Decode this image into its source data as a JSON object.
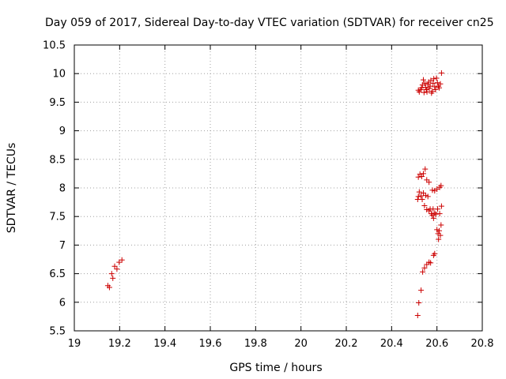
{
  "chart_data": {
    "type": "scatter",
    "title": "Day 059 of 2017, Sidereal Day-to-day VTEC variation (SDTVAR) for receiver cn25",
    "xlabel": "GPS time / hours",
    "ylabel": "SDTVAR / TECUs",
    "xlim": [
      19,
      20.8
    ],
    "ylim": [
      5.5,
      10.5
    ],
    "xticks": [
      "19",
      "19.2",
      "19.4",
      "19.6",
      "19.8",
      "20",
      "20.2",
      "20.4",
      "20.6",
      "20.8"
    ],
    "yticks": [
      "5.5",
      "6",
      "6.5",
      "7",
      "7.5",
      "8",
      "8.5",
      "9",
      "9.5",
      "10",
      "10.5"
    ],
    "grid": true,
    "marker": "+",
    "color": "#cc0000",
    "series": [
      {
        "name": "SDTVAR",
        "points": [
          [
            19.148,
            6.29
          ],
          [
            19.155,
            6.26
          ],
          [
            19.165,
            6.5
          ],
          [
            19.17,
            6.42
          ],
          [
            19.178,
            6.63
          ],
          [
            19.188,
            6.58
          ],
          [
            19.198,
            6.7
          ],
          [
            19.21,
            6.74
          ],
          [
            20.515,
            5.77
          ],
          [
            20.52,
            5.99
          ],
          [
            20.53,
            6.21
          ],
          [
            20.537,
            6.53
          ],
          [
            20.545,
            6.6
          ],
          [
            20.555,
            6.66
          ],
          [
            20.565,
            6.7
          ],
          [
            20.572,
            6.69
          ],
          [
            20.585,
            6.82
          ],
          [
            20.59,
            6.85
          ],
          [
            20.515,
            7.8
          ],
          [
            20.518,
            7.85
          ],
          [
            20.522,
            7.93
          ],
          [
            20.53,
            7.86
          ],
          [
            20.535,
            7.8
          ],
          [
            20.54,
            7.91
          ],
          [
            20.545,
            7.69
          ],
          [
            20.55,
            7.87
          ],
          [
            20.555,
            7.62
          ],
          [
            20.56,
            7.85
          ],
          [
            20.565,
            7.6
          ],
          [
            20.57,
            7.63
          ],
          [
            20.575,
            7.55
          ],
          [
            20.58,
            7.52
          ],
          [
            20.583,
            7.63
          ],
          [
            20.585,
            7.47
          ],
          [
            20.59,
            7.56
          ],
          [
            20.595,
            7.54
          ],
          [
            20.6,
            7.27
          ],
          [
            20.603,
            7.63
          ],
          [
            20.605,
            7.2
          ],
          [
            20.607,
            7.1
          ],
          [
            20.61,
            7.25
          ],
          [
            20.612,
            7.55
          ],
          [
            20.615,
            7.17
          ],
          [
            20.618,
            7.35
          ],
          [
            20.62,
            7.68
          ],
          [
            20.518,
            8.19
          ],
          [
            20.525,
            8.24
          ],
          [
            20.533,
            8.2
          ],
          [
            20.54,
            8.25
          ],
          [
            20.548,
            8.33
          ],
          [
            20.555,
            8.14
          ],
          [
            20.565,
            8.1
          ],
          [
            20.58,
            7.96
          ],
          [
            20.59,
            7.95
          ],
          [
            20.6,
            7.98
          ],
          [
            20.612,
            8.01
          ],
          [
            20.618,
            8.04
          ],
          [
            20.518,
            9.71
          ],
          [
            20.522,
            9.68
          ],
          [
            20.528,
            9.72
          ],
          [
            20.532,
            9.75
          ],
          [
            20.536,
            9.8
          ],
          [
            20.54,
            9.89
          ],
          [
            20.543,
            9.67
          ],
          [
            20.546,
            9.83
          ],
          [
            20.55,
            9.76
          ],
          [
            20.553,
            9.72
          ],
          [
            20.556,
            9.68
          ],
          [
            20.56,
            9.81
          ],
          [
            20.563,
            9.85
          ],
          [
            20.566,
            9.74
          ],
          [
            20.57,
            9.78
          ],
          [
            20.573,
            9.88
          ],
          [
            20.576,
            9.66
          ],
          [
            20.58,
            9.69
          ],
          [
            20.583,
            9.83
          ],
          [
            20.586,
            9.91
          ],
          [
            20.59,
            9.77
          ],
          [
            20.594,
            9.72
          ],
          [
            20.598,
            9.92
          ],
          [
            20.602,
            9.84
          ],
          [
            20.606,
            9.78
          ],
          [
            20.61,
            9.75
          ],
          [
            20.615,
            9.82
          ],
          [
            20.62,
            10.01
          ]
        ]
      }
    ]
  }
}
